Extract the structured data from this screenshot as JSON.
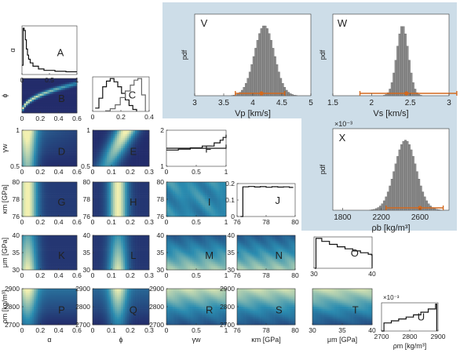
{
  "colors": {
    "panel_bg": "#cddde8",
    "hist_bar": "#8c8c8c",
    "interval": "#d2691e",
    "dens_low": "#232c6b",
    "dens_mid": "#2a8cb0",
    "dens_high": "#f2f0b0"
  },
  "chart_data": [
    {
      "id": "A",
      "type": "line",
      "label": "A",
      "ylabel": "α",
      "xlim": [
        0,
        1
      ],
      "xticks": [
        "0",
        "0.5",
        "1"
      ],
      "x": [
        0,
        0.02,
        0.04,
        0.06,
        0.08,
        0.1,
        0.12,
        0.15,
        0.2,
        0.3,
        0.4,
        0.6,
        0.8,
        1.0
      ],
      "y": [
        0.2,
        1.0,
        0.95,
        0.75,
        0.55,
        0.42,
        0.33,
        0.25,
        0.18,
        0.12,
        0.09,
        0.07,
        0.06,
        0.06
      ]
    },
    {
      "id": "B",
      "type": "heatmap",
      "label": "B",
      "ylabel": "ϕ",
      "xlim": [
        0,
        0.7
      ],
      "ylim": [
        0,
        0.5
      ],
      "xticks": [
        "0",
        "0.2",
        "0.4",
        "0.6"
      ],
      "yticks": []
    },
    {
      "id": "C",
      "type": "line",
      "label": "C",
      "xlim": [
        0,
        0.45
      ],
      "xticks": [
        "0",
        "0.2",
        "0.4"
      ],
      "series": [
        {
          "x": [
            0.02,
            0.05,
            0.08,
            0.11,
            0.14,
            0.17,
            0.2,
            0.23,
            0.26,
            0.29,
            0.32,
            0.35
          ],
          "y": [
            0.1,
            0.4,
            0.75,
            0.92,
            1.0,
            0.9,
            0.75,
            0.55,
            0.35,
            0.18,
            0.06,
            0.0
          ]
        },
        {
          "x": [
            0.1,
            0.14,
            0.18,
            0.22,
            0.26,
            0.3,
            0.33,
            0.36,
            0.39,
            0.42
          ],
          "y": [
            0.02,
            0.08,
            0.2,
            0.42,
            0.62,
            0.8,
            0.95,
            1.0,
            0.5,
            0.0
          ]
        }
      ]
    },
    {
      "id": "D",
      "type": "heatmap",
      "label": "D",
      "ylabel": "γw",
      "xlim": [
        0,
        0.7
      ],
      "ylim": [
        0,
        1
      ],
      "xticks": [
        "0",
        "0.2",
        "0.4",
        "0.6"
      ],
      "yticks": [
        "0.5",
        "1"
      ]
    },
    {
      "id": "E",
      "type": "heatmap",
      "label": "E",
      "xlim": [
        0,
        0.4
      ],
      "ylim": [
        0,
        1
      ],
      "xticks": [
        "0",
        "0.1",
        "0.2",
        "0.3"
      ],
      "yticks": [
        "0.5",
        "1"
      ]
    },
    {
      "id": "F",
      "type": "line",
      "label": "F",
      "xlim": [
        0,
        1
      ],
      "ylim": [
        0,
        2
      ],
      "xticks": [
        "0",
        "0.5",
        "1"
      ],
      "yticks": [
        "1",
        "2"
      ],
      "series": [
        {
          "x": [
            0,
            0.2,
            0.4,
            0.6,
            0.8,
            0.9,
            0.95,
            1.0
          ],
          "y": [
            0.9,
            0.95,
            1.02,
            1.12,
            1.3,
            1.45,
            1.6,
            1.75
          ]
        },
        {
          "x": [
            0,
            1
          ],
          "y": [
            1.0,
            1.2
          ]
        }
      ]
    },
    {
      "id": "G",
      "type": "heatmap",
      "label": "G",
      "ylabel": "κm [GPa]",
      "xlim": [
        0,
        0.7
      ],
      "ylim": [
        75.5,
        80
      ],
      "xticks": [
        "0",
        "0.2",
        "0.4",
        "0.6"
      ],
      "yticks": [
        "76",
        "78",
        "80"
      ]
    },
    {
      "id": "H",
      "type": "heatmap",
      "label": "H",
      "xlim": [
        0,
        0.4
      ],
      "ylim": [
        75.5,
        80
      ],
      "xticks": [
        "0",
        "0.1",
        "0.2",
        "0.3"
      ],
      "yticks": [
        "76",
        "78",
        "80"
      ]
    },
    {
      "id": "I",
      "type": "heatmap",
      "label": "I",
      "xlim": [
        0,
        1
      ],
      "ylim": [
        75.5,
        80
      ],
      "xticks": [
        "0",
        "0.5",
        "1"
      ],
      "yticks": [
        "76",
        "78",
        "80"
      ]
    },
    {
      "id": "J",
      "type": "line",
      "label": "J",
      "xlim": [
        75,
        80
      ],
      "ylim": [
        0,
        0.25
      ],
      "xticks": [
        "76",
        "78",
        "80"
      ],
      "yticks": [
        "0",
        "0.1",
        "0.2"
      ],
      "x": [
        75.3,
        75.5,
        76,
        76.5,
        77,
        77.5,
        78,
        78.5,
        79,
        79.5,
        79.8
      ],
      "y": [
        0.0,
        0.225,
        0.228,
        0.224,
        0.227,
        0.222,
        0.226,
        0.223,
        0.225,
        0.221,
        0.224
      ]
    },
    {
      "id": "K",
      "type": "heatmap",
      "label": "K",
      "ylabel": "μm [GPa]",
      "xlim": [
        0,
        0.7
      ],
      "ylim": [
        25,
        40
      ],
      "xticks": [
        "0",
        "0.2",
        "0.4",
        "0.6"
      ],
      "yticks": [
        "30",
        "35",
        "40"
      ]
    },
    {
      "id": "L",
      "type": "heatmap",
      "label": "L",
      "xlim": [
        0,
        0.4
      ],
      "ylim": [
        25,
        40
      ],
      "xticks": [
        "0",
        "0.1",
        "0.2",
        "0.3"
      ],
      "yticks": [
        "30",
        "35",
        "40"
      ]
    },
    {
      "id": "M",
      "type": "heatmap",
      "label": "M",
      "xlim": [
        0,
        1
      ],
      "ylim": [
        25,
        40
      ],
      "xticks": [
        "0",
        "0.5",
        "1"
      ],
      "yticks": [
        "30",
        "35",
        "40"
      ]
    },
    {
      "id": "N",
      "type": "heatmap",
      "label": "N",
      "xlim": [
        75,
        80
      ],
      "ylim": [
        25,
        40
      ],
      "xticks": [
        "76",
        "78",
        "80"
      ],
      "yticks": [
        "30",
        "35",
        "40"
      ]
    },
    {
      "id": "O",
      "type": "line",
      "label": "O",
      "xlim": [
        25,
        40
      ],
      "xticks": [
        "30",
        "40"
      ],
      "x": [
        25.2,
        25.5,
        27,
        29,
        31,
        33,
        35,
        37,
        39,
        39.8,
        40
      ],
      "y": [
        0.0,
        1.0,
        0.9,
        0.8,
        0.72,
        0.65,
        0.58,
        0.52,
        0.47,
        0.45,
        0.0
      ]
    },
    {
      "id": "P",
      "type": "heatmap",
      "label": "P",
      "ylabel": "ρm [kg/m³]",
      "xlabel": "α",
      "xlim": [
        0,
        0.7
      ],
      "ylim": [
        2650,
        2900
      ],
      "xticks": [
        "0",
        "0.2",
        "0.4",
        "0.6"
      ],
      "yticks": [
        "2700",
        "2800",
        "2900"
      ]
    },
    {
      "id": "Q",
      "type": "heatmap",
      "label": "Q",
      "xlabel": "ϕ",
      "xlim": [
        0,
        0.4
      ],
      "ylim": [
        2650,
        2900
      ],
      "xticks": [
        "0",
        "0.1",
        "0.2",
        "0.3"
      ],
      "yticks": [
        "2700",
        "2800",
        "2900"
      ]
    },
    {
      "id": "R",
      "type": "heatmap",
      "label": "R",
      "xlabel": "γw",
      "xlim": [
        0,
        1
      ],
      "ylim": [
        2650,
        2900
      ],
      "xticks": [
        "0",
        "0.5",
        "1"
      ],
      "yticks": [
        "2700",
        "2800",
        "2900"
      ]
    },
    {
      "id": "S",
      "type": "heatmap",
      "label": "S",
      "xlabel": "κm [GPa]",
      "xlim": [
        75,
        80
      ],
      "ylim": [
        2650,
        2900
      ],
      "xticks": [
        "76",
        "78",
        "80"
      ],
      "yticks": [
        "2700",
        "2800",
        "2900"
      ]
    },
    {
      "id": "T",
      "type": "heatmap",
      "label": "T",
      "xlabel": "μm [GPa]",
      "xlim": [
        25,
        40
      ],
      "ylim": [
        2650,
        2900
      ],
      "xticks": [
        "30",
        "35",
        "40"
      ],
      "yticks": []
    },
    {
      "id": "U",
      "type": "line",
      "label": "U",
      "xlabel": "ρm [kg/m³]",
      "multiplier": "×10⁻³",
      "xlim": [
        2680,
        2910
      ],
      "xticks": [
        "2700",
        "2800",
        "2900"
      ],
      "x": [
        2680,
        2690,
        2720,
        2750,
        2780,
        2810,
        2840,
        2870,
        2900,
        2905
      ],
      "y": [
        0.0,
        0.3,
        0.38,
        0.45,
        0.52,
        0.6,
        0.7,
        0.82,
        1.0,
        0.0
      ]
    },
    {
      "id": "V",
      "type": "bar",
      "label": "V",
      "ylabel": "pdf",
      "xlabel": "Vp [km/s]",
      "xlim": [
        3,
        5
      ],
      "xticks": [
        "3",
        "3.5",
        "4",
        "4.5",
        "5"
      ],
      "mean": 4.2,
      "sd": 0.17,
      "interval": [
        3.7,
        4.55
      ],
      "point": 4.15
    },
    {
      "id": "W",
      "type": "bar",
      "label": "W",
      "ylabel": "pdf",
      "xlabel": "Vs [km/s]",
      "xlim": [
        1.5,
        3
      ],
      "xticks": [
        "1.5",
        "2",
        "2.5",
        "3"
      ],
      "mean": 2.4,
      "sd": 0.075,
      "interval": [
        1.85,
        3.1
      ],
      "point": 2.45
    },
    {
      "id": "X",
      "type": "bar",
      "label": "X",
      "ylabel": "pdf",
      "xlabel": "ρb [kg/m³]",
      "multiplier": "×10⁻³",
      "xlim": [
        1700,
        2900
      ],
      "xticks": [
        "1800",
        "2200",
        "2600"
      ],
      "mean": 2450,
      "sd": 110,
      "interval": [
        2250,
        2840
      ],
      "point": 2600
    }
  ]
}
